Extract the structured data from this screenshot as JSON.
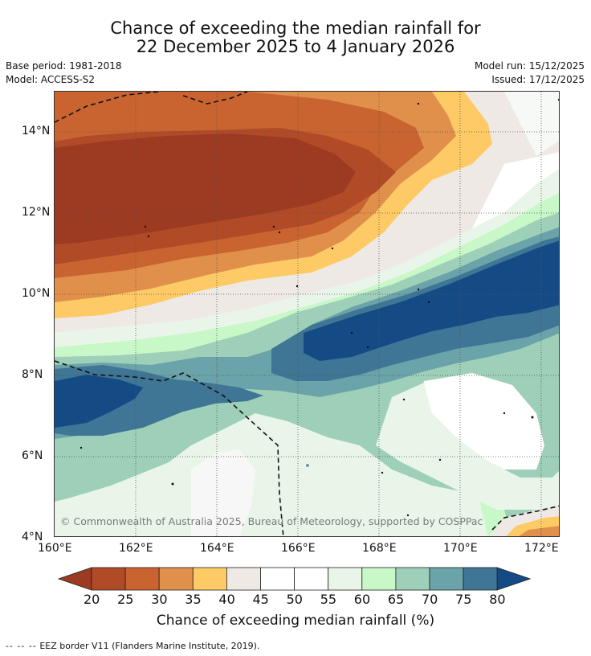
{
  "header": {
    "title_line1": "Chance of exceeding the median rainfall for",
    "title_line2": "22 December 2025 to 4 January 2026",
    "base_period": "Base period: 1981-2018",
    "model": "Model: ACCESS-S2",
    "model_run": "Model run: 15/12/2025",
    "issued": "Issued: 17/12/2025"
  },
  "map": {
    "lon_ticks": [
      "160°E",
      "162°E",
      "164°E",
      "166°E",
      "168°E",
      "170°E",
      "172°E"
    ],
    "lat_ticks": [
      "14°N",
      "12°N",
      "10°N",
      "8°N",
      "6°N",
      "4°N"
    ],
    "credit": "© Commonwealth of Australia 2025, Bureau of Meteorology, supported by COSPPac"
  },
  "colorbar": {
    "ticks": [
      "20",
      "25",
      "30",
      "35",
      "40",
      "45",
      "50",
      "55",
      "60",
      "65",
      "70",
      "75",
      "80"
    ],
    "colors": [
      "#9c3b22",
      "#b14a27",
      "#c96430",
      "#e0904a",
      "#fdca66",
      "#efe9e5",
      "#ffffff",
      "#ffffff",
      "#e9f5e9",
      "#c8f7c8",
      "#9ecfb9",
      "#6aa3a9",
      "#3f7595",
      "#144b85"
    ],
    "title": "Chance of exceeding median rainfall (%)"
  },
  "footer": {
    "legend_marker": "-- -- --",
    "legend_text": "EEZ border V11 (Flanders Marine Institute, 2019)."
  }
}
